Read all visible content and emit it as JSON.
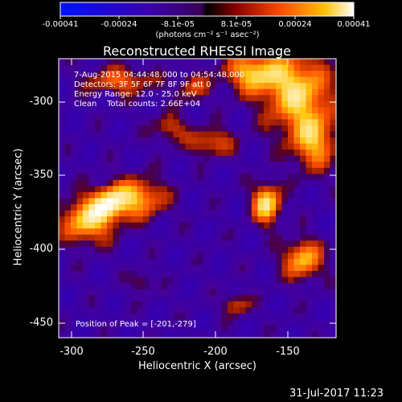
{
  "title": "Reconstructed RHESSI Image",
  "colorbar": {
    "ticks": [
      "-0.00041",
      "-0.00024",
      "-8.1e-05",
      "8.1e-05",
      "0.00024",
      "0.00041"
    ],
    "units_label": "(photons cm⁻² s⁻¹ asec⁻²)"
  },
  "annotations": {
    "time_range": "7-Aug-2015 04:44:48.000 to 04:54:48.000",
    "detectors": "Detectors: 3F 5F 6F 7F 8F 9F att 0",
    "energy": "Energy Range: 12.0 - 25.0 keV",
    "clean": "Clean    Total counts: 2.66E+04",
    "peak": "Position of Peak = [-201,-279]"
  },
  "axes": {
    "xlabel": "Heliocentric X (arcsec)",
    "ylabel": "Heliocentric Y (arcsec)",
    "xticks": [
      "-300",
      "-250",
      "-200",
      "-150"
    ],
    "yticks": [
      "-300",
      "-350",
      "-400",
      "-450"
    ]
  },
  "footer": {
    "timestamp": "31-Jul-2017 11:23"
  }
}
